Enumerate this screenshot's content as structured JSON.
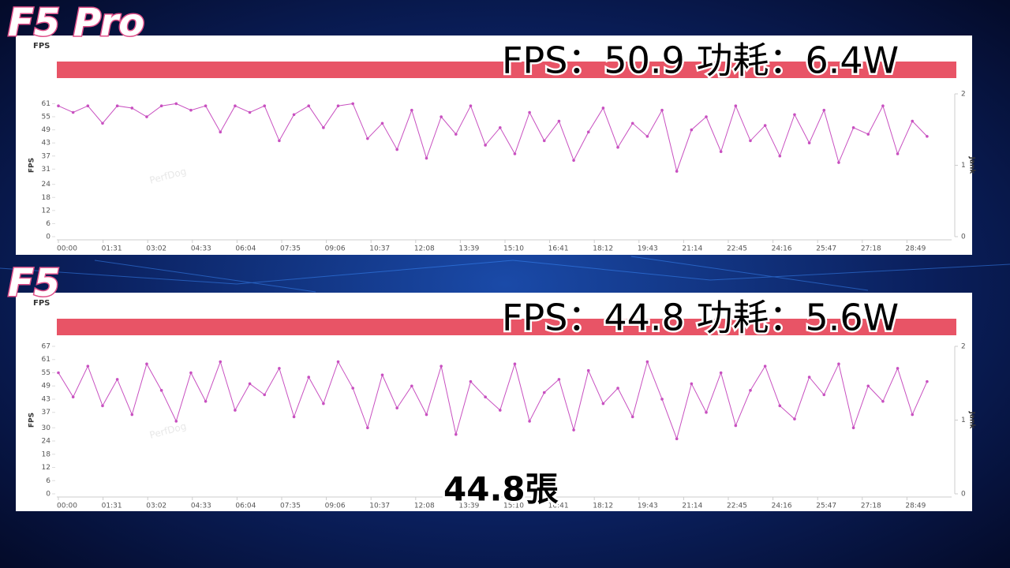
{
  "chart_data": [
    {
      "type": "line",
      "label": "F5 Pro",
      "panel_title": "FPS",
      "y_label": "FPS",
      "y2_label": "Jank",
      "watermark": "PerfDog",
      "caption": "FPS：50.9 功耗：6.4W",
      "x": [
        0,
        30,
        60,
        90,
        120,
        150,
        180,
        210,
        240,
        270,
        300,
        330,
        360,
        390,
        420,
        450,
        480,
        510,
        540,
        570,
        600,
        630,
        660,
        690,
        720,
        750,
        780,
        810,
        840,
        870,
        900,
        930,
        960,
        990,
        1020,
        1050,
        1080,
        1110,
        1140,
        1170,
        1200,
        1230,
        1260,
        1290,
        1320,
        1350,
        1380,
        1410,
        1440,
        1470,
        1500,
        1530,
        1560,
        1590,
        1620,
        1650,
        1680,
        1710,
        1740,
        1770
      ],
      "series": [
        {
          "color": "#c850c0",
          "values": [
            60,
            57,
            60,
            52,
            60,
            59,
            55,
            60,
            61,
            58,
            60,
            48,
            60,
            57,
            60,
            44,
            56,
            60,
            50,
            60,
            61,
            45,
            52,
            40,
            58,
            36,
            55,
            47,
            60,
            42,
            50,
            38,
            57,
            44,
            53,
            35,
            48,
            59,
            41,
            52,
            46,
            58,
            30,
            49,
            55,
            39,
            60,
            44,
            51,
            37,
            56,
            43,
            58,
            34,
            50,
            47,
            60,
            38,
            53,
            46
          ]
        }
      ],
      "xlim": [
        0,
        1820
      ],
      "xticks": [
        {
          "value": 0,
          "label": "00:00"
        },
        {
          "value": 91,
          "label": "01:31"
        },
        {
          "value": 182,
          "label": "03:02"
        },
        {
          "value": 273,
          "label": "04:33"
        },
        {
          "value": 364,
          "label": "06:04"
        },
        {
          "value": 455,
          "label": "07:35"
        },
        {
          "value": 546,
          "label": "09:06"
        },
        {
          "value": 637,
          "label": "10:37"
        },
        {
          "value": 728,
          "label": "12:08"
        },
        {
          "value": 819,
          "label": "13:39"
        },
        {
          "value": 910,
          "label": "15:10"
        },
        {
          "value": 1001,
          "label": "16:41"
        },
        {
          "value": 1092,
          "label": "18:12"
        },
        {
          "value": 1183,
          "label": "19:43"
        },
        {
          "value": 1274,
          "label": "21:14"
        },
        {
          "value": 1365,
          "label": "22:45"
        },
        {
          "value": 1456,
          "label": "24:16"
        },
        {
          "value": 1547,
          "label": "25:47"
        },
        {
          "value": 1638,
          "label": "27:18"
        },
        {
          "value": 1729,
          "label": "28:49"
        }
      ],
      "ylim": [
        0,
        65.5
      ],
      "yticks": [
        0,
        6,
        12,
        18,
        24,
        31,
        37,
        43,
        49,
        55,
        61
      ],
      "y2lim": [
        0,
        2
      ],
      "y2ticks": [
        0,
        1,
        2
      ]
    },
    {
      "type": "line",
      "label": "F5",
      "panel_title": "FPS",
      "y_label": "FPS",
      "y2_label": "Jank",
      "watermark": "PerfDog",
      "caption": "FPS：44.8 功耗：5.6W",
      "x": [
        0,
        30,
        60,
        90,
        120,
        150,
        180,
        210,
        240,
        270,
        300,
        330,
        360,
        390,
        420,
        450,
        480,
        510,
        540,
        570,
        600,
        630,
        660,
        690,
        720,
        750,
        780,
        810,
        840,
        870,
        900,
        930,
        960,
        990,
        1020,
        1050,
        1080,
        1110,
        1140,
        1170,
        1200,
        1230,
        1260,
        1290,
        1320,
        1350,
        1380,
        1410,
        1440,
        1470,
        1500,
        1530,
        1560,
        1590,
        1620,
        1650,
        1680,
        1710,
        1740,
        1770
      ],
      "series": [
        {
          "color": "#c850c0",
          "values": [
            55,
            44,
            58,
            40,
            52,
            36,
            59,
            47,
            33,
            55,
            42,
            60,
            38,
            50,
            45,
            57,
            35,
            53,
            41,
            60,
            48,
            30,
            54,
            39,
            49,
            36,
            58,
            27,
            51,
            44,
            38,
            59,
            33,
            46,
            52,
            29,
            56,
            41,
            48,
            35,
            60,
            43,
            25,
            50,
            37,
            55,
            31,
            47,
            58,
            40,
            34,
            53,
            45,
            59,
            30,
            49,
            42,
            57,
            36,
            51
          ]
        }
      ],
      "xlim": [
        0,
        1820
      ],
      "xticks": [
        {
          "value": 0,
          "label": "00:00"
        },
        {
          "value": 91,
          "label": "01:31"
        },
        {
          "value": 182,
          "label": "03:02"
        },
        {
          "value": 273,
          "label": "04:33"
        },
        {
          "value": 364,
          "label": "06:04"
        },
        {
          "value": 455,
          "label": "07:35"
        },
        {
          "value": 546,
          "label": "09:06"
        },
        {
          "value": 637,
          "label": "10:37"
        },
        {
          "value": 728,
          "label": "12:08"
        },
        {
          "value": 819,
          "label": "13:39"
        },
        {
          "value": 910,
          "label": "15:10"
        },
        {
          "value": 1001,
          "label": "16:41"
        },
        {
          "value": 1092,
          "label": "18:12"
        },
        {
          "value": 1183,
          "label": "19:43"
        },
        {
          "value": 1274,
          "label": "21:14"
        },
        {
          "value": 1365,
          "label": "22:45"
        },
        {
          "value": 1456,
          "label": "24:16"
        },
        {
          "value": 1547,
          "label": "25:47"
        },
        {
          "value": 1638,
          "label": "27:18"
        },
        {
          "value": 1729,
          "label": "28:49"
        }
      ],
      "ylim": [
        0,
        67
      ],
      "yticks": [
        0,
        6,
        12,
        18,
        24,
        30,
        37,
        43,
        49,
        55,
        61,
        67
      ],
      "y2lim": [
        0,
        2
      ],
      "y2ticks": [
        0,
        1,
        2
      ]
    }
  ],
  "subtitle": "44.8張"
}
